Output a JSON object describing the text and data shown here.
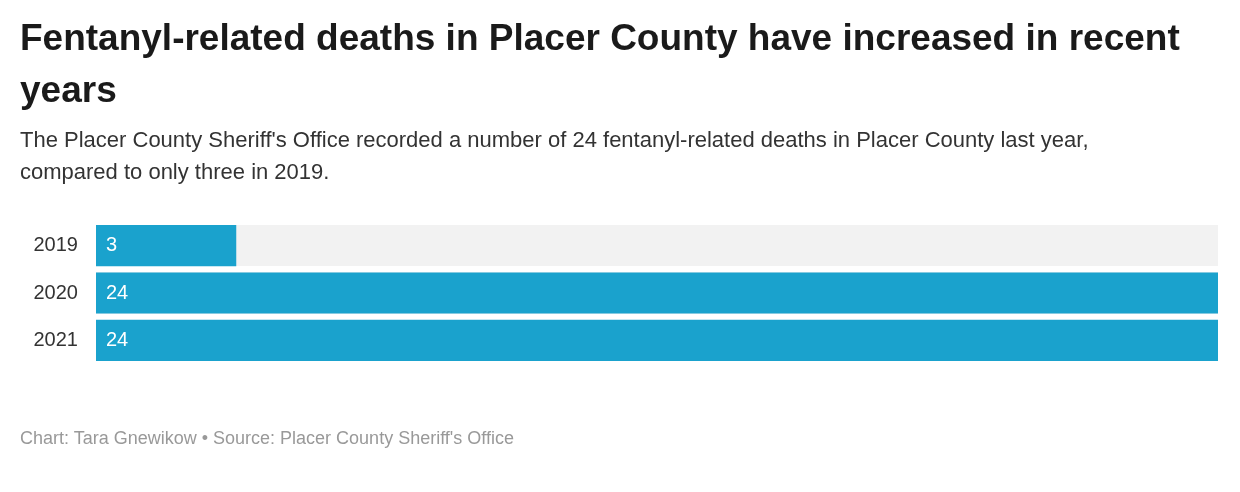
{
  "chart_data": {
    "type": "bar",
    "orientation": "horizontal",
    "title": "Fentanyl-related deaths in Placer County have increased in recent years",
    "subtitle": "The Placer County Sheriff's Office recorded a number of 24 fentanyl-related deaths in Placer County last year, compared to only three in 2019.",
    "categories": [
      "2019",
      "2020",
      "2021"
    ],
    "values": [
      3,
      24,
      24
    ],
    "color": "#1aa2cd",
    "data_labels": true,
    "annotations": [
      "Chart: Tara Gnewikow • Source: Placer County Sheriff's Office"
    ]
  }
}
